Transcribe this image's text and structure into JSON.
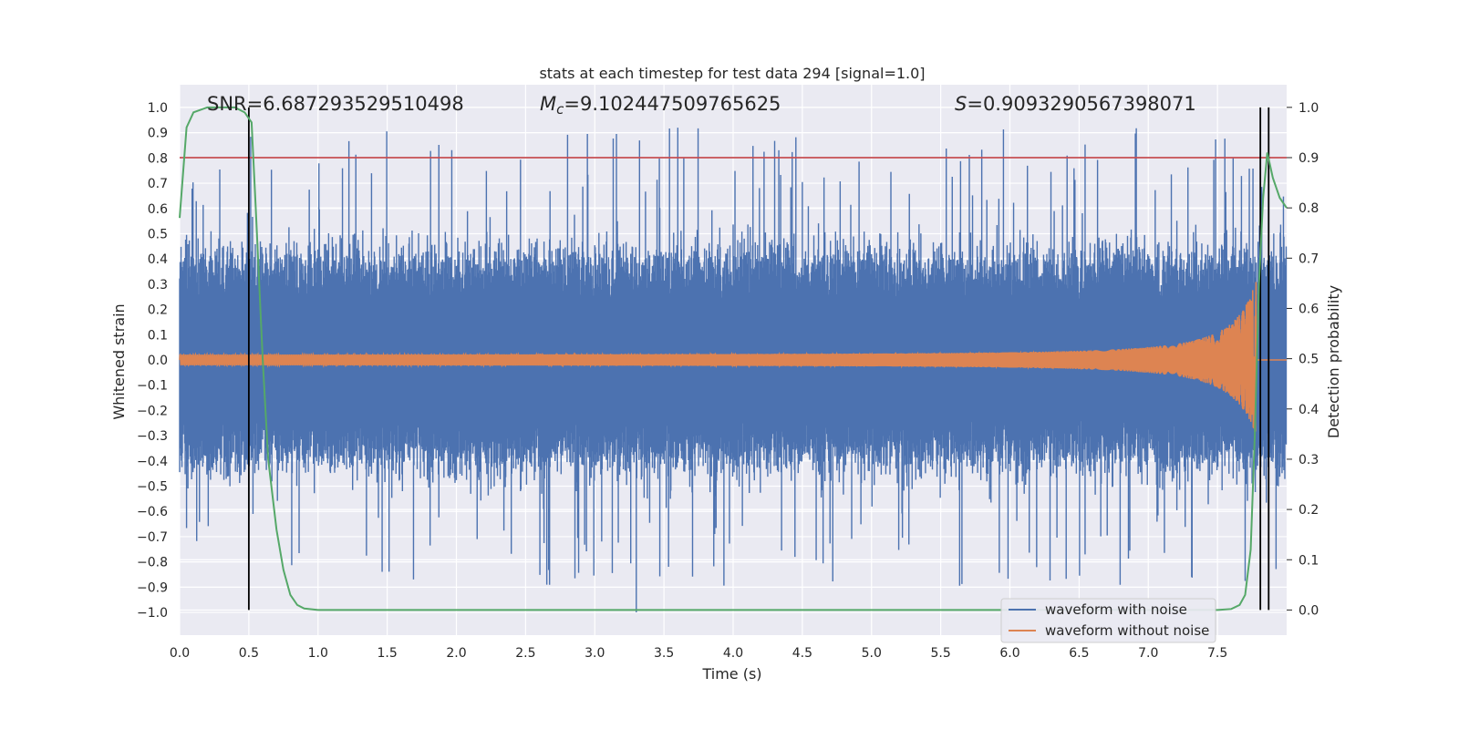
{
  "chart_data": {
    "type": "line",
    "title": "stats at each timestep for test data 294 [signal=1.0]",
    "xlabel": "Time (s)",
    "ylabel": "Whitened strain",
    "y2label": "Detection probability",
    "xlim": [
      0.0,
      8.0
    ],
    "ylim": [
      -1.09,
      1.09
    ],
    "y2lim": [
      -0.05,
      1.045
    ],
    "x_ticks": [
      "0.0",
      "0.5",
      "1.0",
      "1.5",
      "2.0",
      "2.5",
      "3.0",
      "3.5",
      "4.0",
      "4.5",
      "5.0",
      "5.5",
      "6.0",
      "6.5",
      "7.0",
      "7.5"
    ],
    "y_ticks": [
      "1.0",
      "0.9",
      "0.8",
      "0.7",
      "0.6",
      "0.5",
      "0.4",
      "0.3",
      "0.2",
      "0.1",
      "0.0",
      "−0.1",
      "−0.2",
      "−0.3",
      "−0.4",
      "−0.5",
      "−0.6",
      "−0.7",
      "−0.8",
      "−0.9",
      "−1.0"
    ],
    "y2_ticks": [
      "1.0",
      "0.9",
      "0.8",
      "0.7",
      "0.6",
      "0.5",
      "0.4",
      "0.3",
      "0.2",
      "0.1",
      "0.0"
    ],
    "grid": true,
    "legend_position": "lower-right",
    "annotations": {
      "snr": "SNR=6.687293529510498",
      "mc_symbol": "M",
      "mc_subscript": "c",
      "mc_value": "=9.102447509765625",
      "s_symbol": "S",
      "s_value": "=0.9093290567398071"
    },
    "threshold_probability": 0.9,
    "vertical_lines_x": [
      0.5,
      7.81,
      7.87
    ],
    "series": [
      {
        "name": "waveform with noise",
        "color": "#4c72b0",
        "envelope_typical": 0.38,
        "peak_max": 0.92,
        "peak_min": -1.0
      },
      {
        "name": "waveform without noise",
        "color": "#dd8452",
        "start_amplitude": 0.02,
        "peak_amplitude": 0.32,
        "merger_time": 7.78
      },
      {
        "name": "",
        "color": "#55a868",
        "axis": "secondary",
        "x": [
          0.0,
          0.05,
          0.1,
          0.2,
          0.3,
          0.4,
          0.47,
          0.52,
          0.55,
          0.6,
          0.64,
          0.7,
          0.75,
          0.8,
          0.85,
          0.9,
          1.0,
          2.0,
          4.0,
          6.0,
          7.0,
          7.5,
          7.6,
          7.66,
          7.7,
          7.74,
          7.77,
          7.8,
          7.83,
          7.86,
          7.9,
          7.95,
          8.0
        ],
        "values": [
          0.78,
          0.96,
          0.99,
          1.0,
          1.0,
          1.0,
          0.99,
          0.97,
          0.8,
          0.5,
          0.3,
          0.16,
          0.08,
          0.03,
          0.01,
          0.003,
          0.0,
          0.0,
          0.0,
          0.0,
          0.0,
          0.0,
          0.002,
          0.01,
          0.03,
          0.12,
          0.35,
          0.65,
          0.82,
          0.91,
          0.86,
          0.82,
          0.8
        ]
      },
      {
        "name": "",
        "color": "#c44e52",
        "type": "threshold",
        "value": 0.9
      }
    ]
  }
}
